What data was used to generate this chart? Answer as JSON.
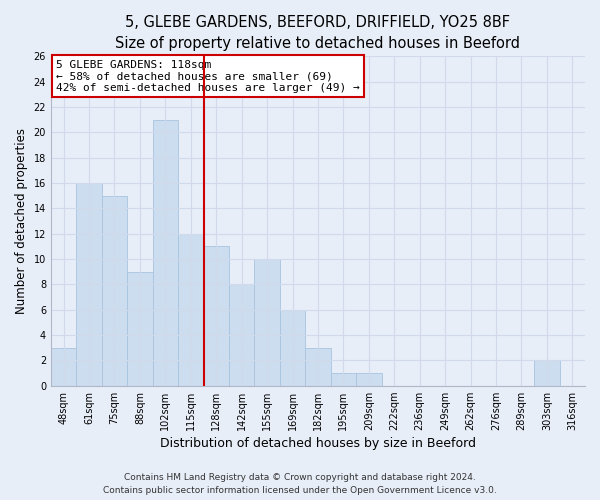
{
  "title": "5, GLEBE GARDENS, BEEFORD, DRIFFIELD, YO25 8BF",
  "subtitle": "Size of property relative to detached houses in Beeford",
  "xlabel": "Distribution of detached houses by size in Beeford",
  "ylabel": "Number of detached properties",
  "bar_labels": [
    "48sqm",
    "61sqm",
    "75sqm",
    "88sqm",
    "102sqm",
    "115sqm",
    "128sqm",
    "142sqm",
    "155sqm",
    "169sqm",
    "182sqm",
    "195sqm",
    "209sqm",
    "222sqm",
    "236sqm",
    "249sqm",
    "262sqm",
    "276sqm",
    "289sqm",
    "303sqm",
    "316sqm"
  ],
  "bar_values": [
    3,
    16,
    15,
    9,
    21,
    12,
    11,
    8,
    10,
    6,
    3,
    1,
    1,
    0,
    0,
    0,
    0,
    0,
    0,
    2,
    0
  ],
  "bar_color": "#ccddf0",
  "bar_edge_color": "#a8c4df",
  "highlight_line_color": "#cc0000",
  "annotation_box_text": "5 GLEBE GARDENS: 118sqm\n← 58% of detached houses are smaller (69)\n42% of semi-detached houses are larger (49) →",
  "annotation_box_color": "#ffffff",
  "annotation_box_edge_color": "#cc0000",
  "ylim": [
    0,
    26
  ],
  "yticks": [
    0,
    2,
    4,
    6,
    8,
    10,
    12,
    14,
    16,
    18,
    20,
    22,
    24,
    26
  ],
  "grid_color": "#d0daea",
  "background_color": "#e8eef8",
  "plot_bg_color": "#e8eef8",
  "footer_line1": "Contains HM Land Registry data © Crown copyright and database right 2024.",
  "footer_line2": "Contains public sector information licensed under the Open Government Licence v3.0.",
  "title_fontsize": 10.5,
  "subtitle_fontsize": 9.5,
  "xlabel_fontsize": 9,
  "ylabel_fontsize": 8.5,
  "tick_fontsize": 7,
  "annotation_fontsize": 8,
  "footer_fontsize": 6.5
}
